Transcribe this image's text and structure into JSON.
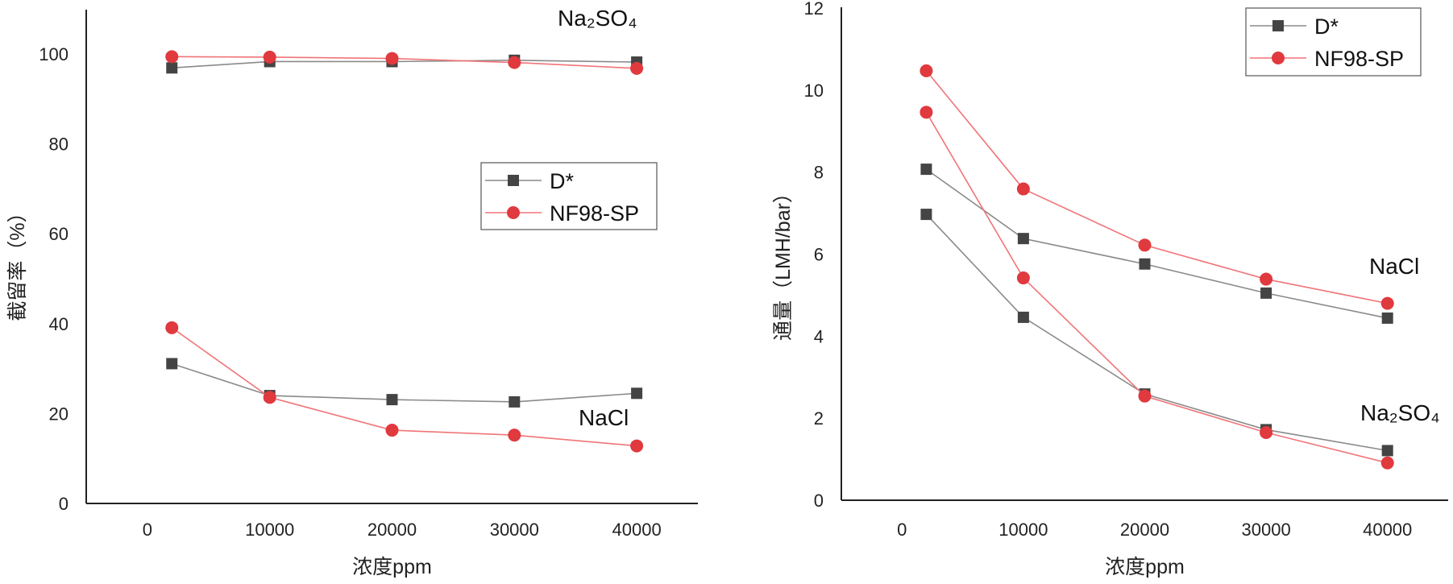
{
  "chart_data": [
    {
      "type": "line",
      "title": "",
      "xlabel": "浓度ppm",
      "ylabel": "截留率（%）",
      "xlim": [
        -5000,
        45000
      ],
      "ylim": [
        0,
        110
      ],
      "xticks": [
        0,
        10000,
        20000,
        30000,
        40000
      ],
      "xtick_labels": [
        "0",
        "10000",
        "20000",
        "30000",
        "40000"
      ],
      "yticks": [
        0,
        20,
        40,
        60,
        80,
        100
      ],
      "ytick_labels": [
        "0",
        "20",
        "40",
        "60",
        "80",
        "100"
      ],
      "grid": false,
      "legend": {
        "placement": "center-right",
        "entries": [
          "D*",
          "NF98-SP"
        ]
      },
      "annotations": [
        {
          "text": "Na₂SO₄",
          "near": "top-right"
        },
        {
          "text": "NaCl",
          "near": "lower-right"
        }
      ],
      "x": [
        2000,
        10000,
        20000,
        30000,
        40000
      ],
      "series": [
        {
          "name": "D*",
          "group": "Na₂SO₄",
          "marker": "square",
          "color": "#444444",
          "values": [
            96.9,
            98.3,
            98.3,
            98.6,
            98.2
          ]
        },
        {
          "name": "NF98-SP",
          "group": "Na₂SO₄",
          "marker": "circle",
          "color": "#e0393e",
          "values": [
            99.4,
            99.3,
            99.0,
            98.1,
            96.8
          ]
        },
        {
          "name": "D*",
          "group": "NaCl",
          "marker": "square",
          "color": "#444444",
          "values": [
            31.1,
            24.0,
            23.1,
            22.6,
            24.5
          ]
        },
        {
          "name": "NF98-SP",
          "group": "NaCl",
          "marker": "circle",
          "color": "#e0393e",
          "values": [
            39.1,
            23.6,
            16.3,
            15.2,
            12.8
          ]
        }
      ]
    },
    {
      "type": "line",
      "title": "",
      "xlabel": "浓度ppm",
      "ylabel": "通量（LMH/bar）",
      "xlim": [
        -5000,
        45000
      ],
      "ylim": [
        0,
        12
      ],
      "xticks": [
        0,
        10000,
        20000,
        30000,
        40000
      ],
      "xtick_labels": [
        "0",
        "10000",
        "20000",
        "30000",
        "40000"
      ],
      "yticks": [
        0,
        2,
        4,
        6,
        8,
        10,
        12
      ],
      "ytick_labels": [
        "0",
        "2",
        "4",
        "6",
        "8",
        "10",
        "12"
      ],
      "grid": false,
      "legend": {
        "placement": "top-right",
        "entries": [
          "D*",
          "NF98-SP"
        ]
      },
      "annotations": [
        {
          "text": "NaCl",
          "near": "right-middle"
        },
        {
          "text": "Na₂SO₄",
          "near": "lower-right"
        }
      ],
      "x": [
        2000,
        10000,
        20000,
        30000,
        40000
      ],
      "series": [
        {
          "name": "D*",
          "group": "NaCl",
          "marker": "square",
          "color": "#444444",
          "values": [
            8.07,
            6.38,
            5.76,
            5.05,
            4.44
          ]
        },
        {
          "name": "NF98-SP",
          "group": "NaCl",
          "marker": "circle",
          "color": "#e0393e",
          "values": [
            10.47,
            7.59,
            6.22,
            5.39,
            4.8
          ]
        },
        {
          "name": "D*",
          "group": "Na₂SO₄",
          "marker": "square",
          "color": "#444444",
          "values": [
            6.97,
            4.46,
            2.59,
            1.72,
            1.21
          ]
        },
        {
          "name": "NF98-SP",
          "group": "Na₂SO₄",
          "marker": "circle",
          "color": "#e0393e",
          "values": [
            9.46,
            5.42,
            2.54,
            1.65,
            0.91
          ]
        }
      ]
    }
  ]
}
